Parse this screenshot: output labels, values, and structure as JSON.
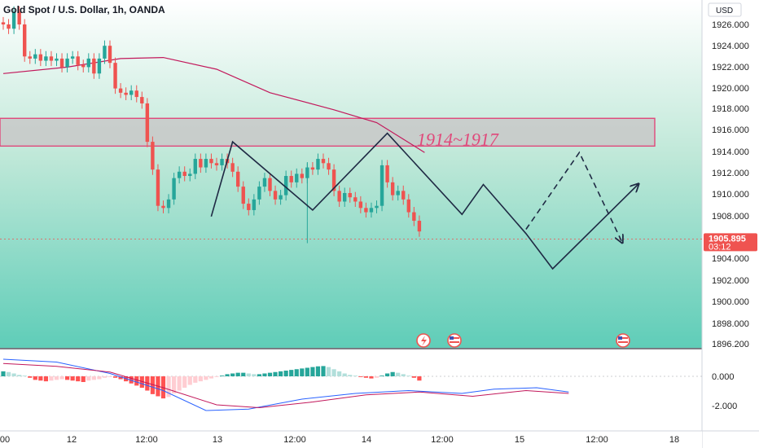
{
  "header": {
    "symbol_line": "Gold Spot / U.S. Dollar, 1h, OANDA"
  },
  "currency": "USD",
  "price_tag": {
    "price": "1905.895",
    "countdown": "03:12"
  },
  "annotation": {
    "zone_label": "1914~1917"
  },
  "colors": {
    "up": "#26a69a",
    "down": "#ef5350",
    "zone_border": "#e0487a",
    "ma": "#c2185b",
    "bg_top": "#ffffff",
    "bg_bottom": "#5fcdb8"
  },
  "chart_data": [
    {
      "type": "candlestick",
      "title": "Gold Spot / U.S. Dollar, 1h, OANDA",
      "y_ticks": [
        "1926.000",
        "1924.000",
        "1922.000",
        "1920.000",
        "1918.000",
        "1916.000",
        "1914.000",
        "1912.000",
        "1910.000",
        "1908.000",
        "1904.000",
        "1902.000",
        "1900.000",
        "1898.000",
        "1896.200"
      ],
      "ylim": [
        1896.2,
        1927.0
      ],
      "x_ticks": [
        "00",
        "12",
        "12:00",
        "13",
        "12:00",
        "14",
        "12:00",
        "15",
        "12:00",
        "18"
      ],
      "last_price": 1905.895,
      "zone": {
        "low": 1914.6,
        "high": 1917.2,
        "label": "1914~1917"
      },
      "candles": [
        [
          1926.2,
          1926.0
        ],
        [
          1926.0,
          1925.6
        ],
        [
          1925.6,
          1927.2
        ],
        [
          1927.2,
          1926.0
        ],
        [
          1926.0,
          1923.0
        ],
        [
          1923.0,
          1922.8
        ],
        [
          1922.8,
          1923.2
        ],
        [
          1923.2,
          1922.6
        ],
        [
          1922.6,
          1923.0
        ],
        [
          1923.0,
          1922.6
        ],
        [
          1922.6,
          1922.8
        ],
        [
          1922.8,
          1922.0
        ],
        [
          1922.0,
          1922.8
        ],
        [
          1922.8,
          1923.0
        ],
        [
          1923.0,
          1922.2
        ],
        [
          1922.2,
          1922.0
        ],
        [
          1922.0,
          1922.8
        ],
        [
          1922.8,
          1921.4
        ],
        [
          1921.4,
          1922.8
        ],
        [
          1922.8,
          1924.0
        ],
        [
          1924.0,
          1922.4
        ],
        [
          1922.4,
          1920.0
        ],
        [
          1920.0,
          1919.6
        ],
        [
          1919.6,
          1919.4
        ],
        [
          1919.4,
          1919.8
        ],
        [
          1919.8,
          1919.2
        ],
        [
          1919.2,
          1918.6
        ],
        [
          1918.6,
          1915.0
        ],
        [
          1915.0,
          1912.4
        ],
        [
          1912.4,
          1909.0
        ],
        [
          1909.0,
          1908.8
        ],
        [
          1908.8,
          1909.6
        ],
        [
          1909.6,
          1911.6
        ],
        [
          1911.6,
          1912.2
        ],
        [
          1912.2,
          1911.8
        ],
        [
          1911.8,
          1912.0
        ],
        [
          1912.0,
          1913.4
        ],
        [
          1913.4,
          1912.6
        ],
        [
          1912.6,
          1913.4
        ],
        [
          1913.4,
          1913.0
        ],
        [
          1913.0,
          1912.8
        ],
        [
          1912.8,
          1913.4
        ],
        [
          1913.4,
          1913.0
        ],
        [
          1913.0,
          1912.2
        ],
        [
          1912.2,
          1910.8
        ],
        [
          1910.8,
          1909.2
        ],
        [
          1909.2,
          1908.6
        ],
        [
          1908.6,
          1909.6
        ],
        [
          1909.6,
          1910.8
        ],
        [
          1910.8,
          1911.6
        ],
        [
          1911.6,
          1910.4
        ],
        [
          1910.4,
          1909.6
        ],
        [
          1909.6,
          1910.0
        ],
        [
          1910.0,
          1911.8
        ],
        [
          1911.8,
          1911.2
        ],
        [
          1911.2,
          1912.0
        ],
        [
          1912.0,
          1911.6
        ],
        [
          1911.6,
          1912.6
        ],
        [
          1912.6,
          1912.4
        ],
        [
          1912.4,
          1913.4
        ],
        [
          1913.4,
          1913.0
        ],
        [
          1913.0,
          1912.4
        ],
        [
          1912.4,
          1910.4
        ],
        [
          1910.4,
          1909.4
        ],
        [
          1909.4,
          1910.2
        ],
        [
          1910.2,
          1909.8
        ],
        [
          1909.8,
          1909.4
        ],
        [
          1909.4,
          1908.8
        ],
        [
          1908.8,
          1908.4
        ],
        [
          1908.4,
          1908.8
        ],
        [
          1908.8,
          1909.0
        ],
        [
          1909.0,
          1912.8
        ],
        [
          1912.8,
          1911.2
        ],
        [
          1911.2,
          1910.0
        ],
        [
          1910.0,
          1910.4
        ],
        [
          1910.4,
          1909.6
        ],
        [
          1909.6,
          1908.4
        ],
        [
          1908.4,
          1907.6
        ],
        [
          1907.6,
          1906.6
        ]
      ],
      "moving_average": [
        [
          0,
          1921.4
        ],
        [
          12,
          1922.0
        ],
        [
          22,
          1922.8
        ],
        [
          30,
          1922.9
        ],
        [
          40,
          1921.8
        ],
        [
          50,
          1919.6
        ],
        [
          62,
          1918.0
        ],
        [
          70,
          1916.8
        ],
        [
          79,
          1914.0
        ]
      ],
      "pattern_line": [
        [
          39,
          1908.0
        ],
        [
          43,
          1915.0
        ],
        [
          58,
          1908.6
        ],
        [
          72,
          1915.8
        ],
        [
          86,
          1908.2
        ],
        [
          90,
          1911.0
        ],
        [
          98,
          1906.4
        ],
        [
          103,
          1903.1
        ],
        [
          119,
          1911.0
        ]
      ],
      "projection_line": [
        [
          98,
          1906.8
        ],
        [
          108,
          1914.0
        ],
        [
          116,
          1905.6
        ]
      ]
    },
    {
      "type": "macd",
      "y_ticks": [
        "0.000",
        "-2.000"
      ],
      "histogram": [
        0.35,
        0.3,
        0.2,
        0.1,
        0.05,
        -0.1,
        -0.25,
        -0.3,
        -0.35,
        -0.3,
        -0.25,
        -0.2,
        -0.25,
        -0.3,
        -0.35,
        -0.4,
        -0.3,
        -0.25,
        -0.2,
        -0.1,
        -0.05,
        -0.1,
        -0.2,
        -0.35,
        -0.5,
        -0.65,
        -0.8,
        -1.0,
        -1.25,
        -1.4,
        -1.55,
        -1.45,
        -1.2,
        -1.0,
        -0.8,
        -0.6,
        -0.45,
        -0.35,
        -0.25,
        -0.15,
        -0.05,
        0.05,
        0.15,
        0.2,
        0.25,
        0.25,
        0.2,
        0.15,
        0.15,
        0.2,
        0.25,
        0.3,
        0.35,
        0.4,
        0.45,
        0.5,
        0.55,
        0.6,
        0.65,
        0.7,
        0.72,
        0.65,
        0.5,
        0.35,
        0.2,
        0.1,
        0.05,
        -0.05,
        -0.1,
        -0.15,
        -0.1,
        0.05,
        0.2,
        0.3,
        0.25,
        0.15,
        0.05,
        -0.1,
        -0.3
      ],
      "macd_line": [
        [
          0,
          1.2
        ],
        [
          10,
          1.0
        ],
        [
          20,
          0.2
        ],
        [
          30,
          -1.0
        ],
        [
          38,
          -2.4
        ],
        [
          46,
          -2.3
        ],
        [
          56,
          -1.6
        ],
        [
          66,
          -1.2
        ],
        [
          76,
          -1.0
        ],
        [
          86,
          -1.2
        ],
        [
          92,
          -0.9
        ],
        [
          100,
          -0.8
        ],
        [
          106,
          -1.1
        ]
      ],
      "signal_line": [
        [
          0,
          0.9
        ],
        [
          10,
          0.7
        ],
        [
          20,
          0.3
        ],
        [
          30,
          -0.8
        ],
        [
          40,
          -2.0
        ],
        [
          48,
          -2.2
        ],
        [
          58,
          -1.8
        ],
        [
          68,
          -1.3
        ],
        [
          78,
          -1.1
        ],
        [
          88,
          -1.4
        ],
        [
          98,
          -1.0
        ],
        [
          106,
          -1.2
        ]
      ]
    }
  ]
}
